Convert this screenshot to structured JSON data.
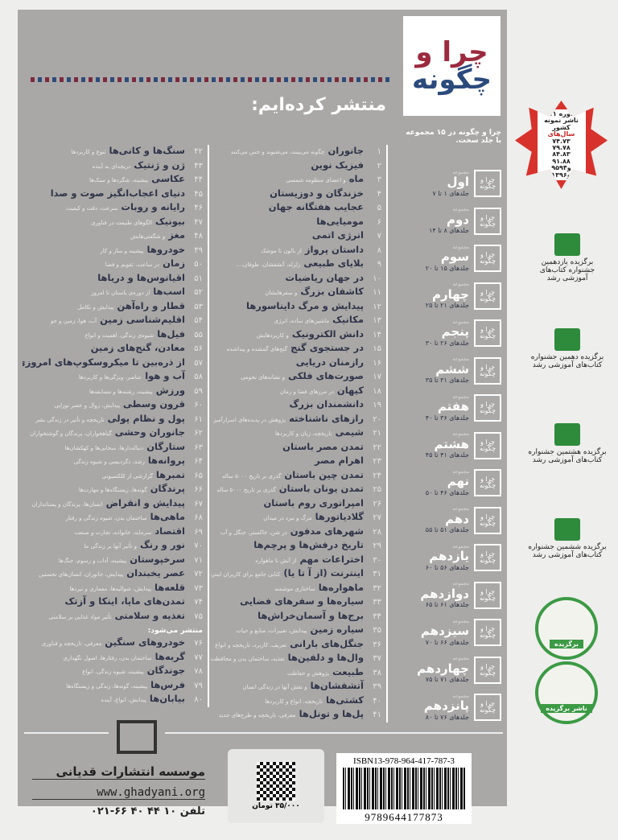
{
  "logo": {
    "line1": "چرا و",
    "line2": "چگونه"
  },
  "heading": "منتشر کرده‌ایم:",
  "series_intro": "چرا و چگونه در ۱۵ مجموعه با جلد سخت.",
  "series_label": "مجموعه",
  "series": [
    {
      "name": "اول",
      "range": "جلدهای ۱ تا ۷"
    },
    {
      "name": "دوم",
      "range": "جلدهای ۸ تا ۱۴"
    },
    {
      "name": "سوم",
      "range": "جلدهای ۱۵ تا ۲۰"
    },
    {
      "name": "چهارم",
      "range": "جلدهای ۲۱ تا ۲۵"
    },
    {
      "name": "پنجم",
      "range": "جلدهای ۲۶ تا ۳۰"
    },
    {
      "name": "ششم",
      "range": "جلدهای ۳۱ تا ۳۵"
    },
    {
      "name": "هفتم",
      "range": "جلدهای ۳۶ تا ۴۰"
    },
    {
      "name": "هشتم",
      "range": "جلدهای ۴۱ تا ۴۵"
    },
    {
      "name": "نهم",
      "range": "جلدهای ۴۶ تا ۵۰"
    },
    {
      "name": "دهم",
      "range": "جلدهای ۵۱ تا ۵۵"
    },
    {
      "name": "یازدهم",
      "range": "جلدهای ۵۶ تا ۶۰"
    },
    {
      "name": "دوازدهم",
      "range": "جلدهای ۶۱ تا ۶۵"
    },
    {
      "name": "سیزدهم",
      "range": "جلدهای ۶۶ تا ۷۰"
    },
    {
      "name": "چهاردهم",
      "range": "جلدهای ۷۱ تا ۷۵"
    },
    {
      "name": "پانزدهم",
      "range": "جلدهای ۷۶ تا ۸۰"
    }
  ],
  "books_mid": [
    {
      "n": "۱",
      "t": "جانوران",
      "s": "چگونه می‌بینند، می‌شنوند و حس می‌کنند"
    },
    {
      "n": "۲",
      "t": "فیزیک نوین",
      "s": ""
    },
    {
      "n": "۳",
      "t": "ماه",
      "s": "و اعضای منظومه شمسی"
    },
    {
      "n": "۴",
      "t": "خزندگان و دوزیستان",
      "s": ""
    },
    {
      "n": "۵",
      "t": "عجایب هفتگانه جهان",
      "s": ""
    },
    {
      "n": "۶",
      "t": "مومیایی‌ها",
      "s": ""
    },
    {
      "n": "۷",
      "t": "انرژی اتمی",
      "s": ""
    },
    {
      "n": "۸",
      "t": "داستان پرواز",
      "s": "از بالون تا موشک"
    },
    {
      "n": "۹",
      "t": "بلایای طبیعی",
      "s": "زلزله، آتشفشان، طوفان،..."
    },
    {
      "n": "۱۰",
      "t": "در جهان ریاضیات",
      "s": ""
    },
    {
      "n": "۱۱",
      "t": "کاشفان بزرگ",
      "s": "و سفرهایشان"
    },
    {
      "n": "۱۲",
      "t": "پیدایش و مرگ دایناسورها",
      "s": ""
    },
    {
      "n": "۱۳",
      "t": "مکانیک",
      "s": "ماشین‌های ساده، انرژی"
    },
    {
      "n": "۱۴",
      "t": "دانش الکترونیک",
      "s": "و کاربردهایش"
    },
    {
      "n": "۱۵",
      "t": "در جستجوی گنج",
      "s": "گنج‌های گمشده و پیداشده"
    },
    {
      "n": "۱۶",
      "t": "رازمنان دریایی",
      "s": ""
    },
    {
      "n": "۱۷",
      "t": "صورت‌های فلکی",
      "s": "و نشانه‌های نجومی"
    },
    {
      "n": "۱۸",
      "t": "کیهان",
      "s": "در مرزهای فضا و زمان"
    },
    {
      "n": "۱۹",
      "t": "دانشمندان بزرگ",
      "s": ""
    },
    {
      "n": "۲۰",
      "t": "رازهای ناشناخته",
      "s": "پژوهش در پدیده‌های اسرارآمیز"
    },
    {
      "n": "۲۱",
      "t": "شیمی",
      "s": "تاریخچه، زبان و کاربردها"
    },
    {
      "n": "۲۲",
      "t": "تمدن مصر باستان",
      "s": ""
    },
    {
      "n": "۲۳",
      "t": "اهرام مصر",
      "s": ""
    },
    {
      "n": "۲۴",
      "t": "تمدن چین باستان",
      "s": "گذری بر تاریخ ۵۰۰۰ ساله"
    },
    {
      "n": "۲۵",
      "t": "تمدن یونان باستان",
      "s": "گذری بر تاریخ ۵۰۰۰ ساله"
    },
    {
      "n": "۲۶",
      "t": "امپراتوری روم باستان",
      "s": ""
    },
    {
      "n": "۲۷",
      "t": "گلادیاتورها",
      "s": "مرگ و نبرد در میدان"
    },
    {
      "n": "۲۸",
      "t": "شهرهای مدفون",
      "s": "در شن، خاکستر، جنگل و آب"
    },
    {
      "n": "۲۹",
      "t": "تاریخ درفش‌ها و پرچم‌ها",
      "s": ""
    },
    {
      "n": "۳۰",
      "t": "اختراعات مهم",
      "s": "از آتش تا ماهواره"
    },
    {
      "n": "۳۱",
      "t": "اینترنت (از آ تا یا)",
      "s": "کتابی جامع برای کاربران اینترنت"
    },
    {
      "n": "۳۲",
      "t": "ماهواره‌ها",
      "s": "ساختاری موشمند"
    },
    {
      "n": "۳۳",
      "t": "سیاره‌ها و سفرهای فضایی",
      "s": ""
    },
    {
      "n": "۳۴",
      "t": "برج‌ها و آسمان‌خراش‌ها",
      "s": ""
    },
    {
      "n": "۳۵",
      "t": "سیاره زمین",
      "s": "پیدایش، تغییرات، منابع و حیات"
    },
    {
      "n": "۳۶",
      "t": "جنگل‌های بارانی",
      "s": "تعریف، کاربرد، تاریخچه و انواع"
    },
    {
      "n": "۳۷",
      "t": "وال‌ها و دلفین‌ها",
      "s": "تغذیه، ساختمان بدن و محافظت از آنها"
    },
    {
      "n": "۳۸",
      "t": "طبیعت",
      "s": "پژوهش و حفاظت"
    },
    {
      "n": "۳۹",
      "t": "آتشفشان‌ها",
      "s": "و نقش آنها در زندگی انسان"
    },
    {
      "n": "۴۰",
      "t": "کشتی‌ها",
      "s": "تاریخچه، انواع و کاربردها"
    },
    {
      "n": "۴۱",
      "t": "پل‌ها و تونل‌ها",
      "s": "معرفی، تاریخچه و طرح‌های جدید"
    }
  ],
  "books_left": [
    {
      "n": "۴۲",
      "t": "سنگ‌ها و کانی‌ها",
      "s": "تنوع و کاربردها"
    },
    {
      "n": "۴۳",
      "t": "ژن و ژنتیک",
      "s": "دریچه‌ای به آینده"
    },
    {
      "n": "۴۴",
      "t": "عکاسی",
      "s": "پیشینه، شگردها و سبک‌ها"
    },
    {
      "n": "۴۵",
      "t": "دنیای اعجاب‌انگیز صوت و صدا",
      "s": ""
    },
    {
      "n": "۴۶",
      "t": "رایانه و روبات",
      "s": "سرعت، دقت و کیفیت"
    },
    {
      "n": "۴۷",
      "t": "بیونیک",
      "s": "الگوهای طبیعت در فناوری"
    },
    {
      "n": "۴۸",
      "t": "مغز",
      "s": "و شگفتی‌هایش"
    },
    {
      "n": "۴۹",
      "t": "خودروها",
      "s": "پیشینه و ساز و کار"
    },
    {
      "n": "۵۰",
      "t": "زمان",
      "s": "در ساعت، تقویم و فضا"
    },
    {
      "n": "۵۱",
      "t": "اقیانوس‌ها و دریاها",
      "s": ""
    },
    {
      "n": "۵۲",
      "t": "اسب‌ها",
      "s": "از دوره‌ی باستان تا امروز"
    },
    {
      "n": "۵۳",
      "t": "قطار و راه‌آهن",
      "s": "پیدایش و تکامل"
    },
    {
      "n": "۵۴",
      "t": "اقلیم‌شناسی زمین",
      "s": "آب، هوا، زمین و جو"
    },
    {
      "n": "۵۵",
      "t": "فیل‌ها",
      "s": "شیوه‌ی زندگی، اهمیت و انواع"
    },
    {
      "n": "۵۶",
      "t": "معادن، گنج‌های زمین",
      "s": ""
    },
    {
      "n": "۵۷",
      "t": "از ذره‌بین تا میکروسکوپ‌های امروزی",
      "s": ""
    },
    {
      "n": "۵۸",
      "t": "آب و هوا",
      "s": "عناصر، ویژگی‌ها و کاربردها"
    },
    {
      "n": "۵۹",
      "t": "ورزش",
      "s": "پیشینه، رشته‌ها و مسابقه‌ها"
    },
    {
      "n": "۶۰",
      "t": "قرون وسطی",
      "s": "پیدایش، زوال و عصر نوزایی"
    },
    {
      "n": "۶۱",
      "t": "پول و نظام پولی",
      "s": "تاریخچه و تأثیر در زندگی بشر"
    },
    {
      "n": "۶۲",
      "t": "جانوران وحشی",
      "s": "گیاهخواران، پرندگان و گوشتخواران"
    },
    {
      "n": "۶۳",
      "t": "ستارگان",
      "s": "دنباله‌دارها، سحابی‌ها و کهکشان‌ها"
    },
    {
      "n": "۶۴",
      "t": "پروانه‌ها",
      "s": "رشد، دگردیسی و شیوه زندگی"
    },
    {
      "n": "۶۵",
      "t": "تمبرها",
      "s": "گزارشی از کلکسیونی"
    },
    {
      "n": "۶۶",
      "t": "پرندگان",
      "s": "گونه‌ها، زیستگاه‌ها و مهارت‌ها"
    },
    {
      "n": "۶۷",
      "t": "پیدایش و انقراض",
      "s": "انسان‌ها، پرندگان و پستانداران"
    },
    {
      "n": "۶۸",
      "t": "ماهی‌ها",
      "s": "ساختمان بدن، شیوه زندگی و رفتار"
    },
    {
      "n": "۶۹",
      "t": "اقتصاد",
      "s": "سرمایه، خانواده، تجارت و صنعت"
    },
    {
      "n": "۷۰",
      "t": "نور و رنگ",
      "s": "و تأثیر آنها بر زندگی ما"
    },
    {
      "n": "۷۱",
      "t": "سرخپوستان",
      "s": "پیشینه، آداب و رسوم، جنگ‌ها"
    }
  ],
  "books_left2": [
    {
      "n": "۷۲",
      "t": "عصر یخبندان",
      "s": "پیدایش، جانوران، انسان‌های نخستین"
    },
    {
      "n": "۷۳",
      "t": "قلعه‌ها",
      "s": "پیدایش، شوالیه‌ها، معماری و نبردها"
    },
    {
      "n": "۷۴",
      "t": "تمدن‌های مایا، اینکا و آزتک",
      "s": ""
    },
    {
      "n": "۷۵",
      "t": "تغذیه و سلامتی",
      "s": "تأثیر مواد غذایی بر سلامتی"
    }
  ],
  "upcoming_label": "منتشر می‌شود:",
  "books_upcoming": [
    {
      "n": "۷۶",
      "t": "خودروهای سنگین",
      "s": "معرفی، تاریخچه و فناوری"
    },
    {
      "n": "۷۷",
      "t": "گربه‌ها",
      "s": "ساختمان بدن، رفتارها، اصول نگهداری"
    },
    {
      "n": "۷۸",
      "t": "جوندگان",
      "s": "پیشینه، شیوه زندگی، انواع"
    },
    {
      "n": "۷۹",
      "t": "فرس‌ها",
      "s": "پیشینه، گونه‌ها، زندگی و زیستگاه‌ها"
    },
    {
      "n": "۸۰",
      "t": "بیابان‌ها",
      "s": "پیدایش، انواع، آینده"
    }
  ],
  "award_star": {
    "line1": "۱۱ دوره",
    "line2": "ناشر نمونه",
    "line3": "کشور",
    "line4": "سال‌های",
    "years": [
      "۷۴.۷۳",
      "۷۹.۷۸",
      "۸۴.۸۳",
      "۹۱.۸۸",
      "۹۵و۹۴",
      "و۱۳۹۶"
    ]
  },
  "awards": [
    {
      "text": "برگزیده یازدهمین جشنواره کتاب‌های آموزشی رشد"
    },
    {
      "text": "برگزیده دهمین جشنواره کتاب‌های آموزشی رشد"
    },
    {
      "text": "برگزیده هشتمین جشنواره کتاب‌های آموزشی رشد"
    },
    {
      "text": "برگزیده ششمین جشنواره کتاب‌های آموزشی رشد"
    }
  ],
  "seals": [
    {
      "label": "برگزیده"
    },
    {
      "label": "ناشر برگزیده"
    }
  ],
  "publisher": {
    "name": "موسسه انتشارات قدیانی",
    "website": "www.ghadyani.org",
    "phone": "تلفن ۱۰ ۴۴ ۴۰ ۶۶-۰۲۱"
  },
  "price": "۳۵/۰۰۰ تومان",
  "isbn": {
    "label": "ISBN13-978-964-417-787-3",
    "barcode": "9789644177873"
  },
  "colors": {
    "panel": "#a9a8a6",
    "red": "#9b2a3f",
    "blue": "#2b4a7c",
    "award_red": "#d8322c",
    "award_green": "#2e8b3c"
  }
}
